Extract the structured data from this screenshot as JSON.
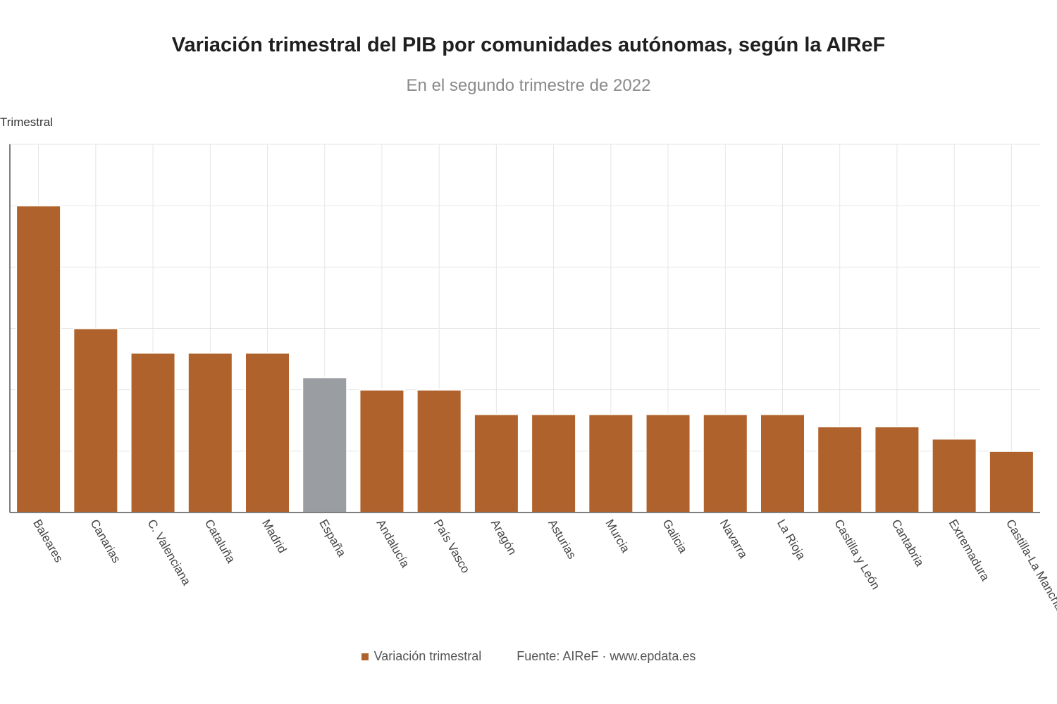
{
  "chart_data": {
    "type": "bar",
    "title": "Variación trimestral del PIB por comunidades autónomas, según la AIReF",
    "subtitle": "En el segundo trimestre de 2022",
    "y_unit_label": "Trimestral",
    "categories": [
      "Baleares",
      "Canarias",
      "C. Valenciana",
      "Cataluña",
      "Madrid",
      "España",
      "Andalucía",
      "País Vasco",
      "Aragón",
      "Asturias",
      "Murcia",
      "Galicia",
      "Navarra",
      "La Rioja",
      "Castilla y León",
      "Cantabria",
      "Extremadura",
      "Castilla-La Mancha"
    ],
    "series": [
      {
        "name": "Variación trimestral",
        "values": [
          2.5,
          1.5,
          1.3,
          1.3,
          1.3,
          1.1,
          1.0,
          1.0,
          0.8,
          0.8,
          0.8,
          0.8,
          0.8,
          0.8,
          0.7,
          0.7,
          0.6,
          0.5
        ]
      }
    ],
    "highlight_category": "España",
    "ylim": [
      0,
      3.0
    ],
    "ytick_step": 0.5,
    "grid": true,
    "colors": {
      "bar": "#b0622c",
      "highlight": "#9a9ea3",
      "grid": "#e6e6e6",
      "axis": "#555555"
    }
  },
  "footer": {
    "legend_label": "Variación trimestral",
    "source": "Fuente: AIReF · www.epdata.es"
  }
}
